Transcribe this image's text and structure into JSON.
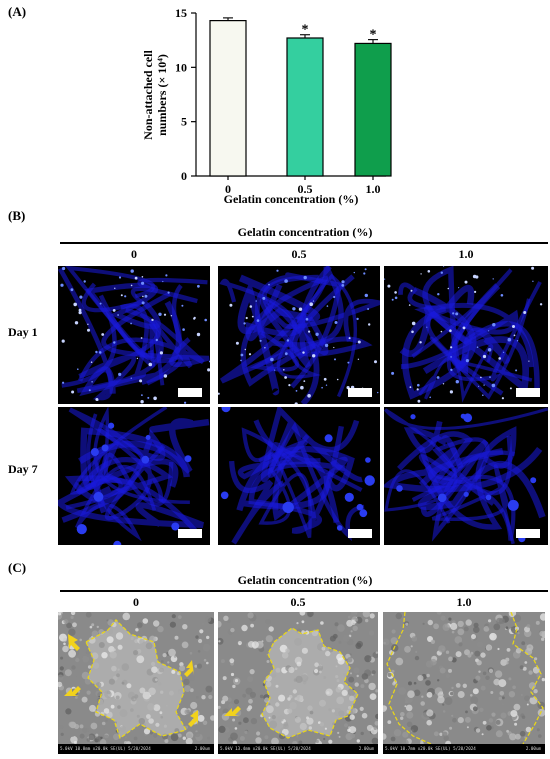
{
  "panel_a": {
    "label": "(A)",
    "chart_data": {
      "type": "bar",
      "categories": [
        "0",
        "0.5",
        "1.0"
      ],
      "values": [
        14.3,
        12.7,
        12.2
      ],
      "errors": [
        0.25,
        0.3,
        0.35
      ],
      "significance": [
        "",
        "*",
        "*"
      ],
      "bar_colors": [
        "#f7f8f0",
        "#34cf9f",
        "#0f9e4c"
      ],
      "xlabel": "Gelatin concentration (%)",
      "ylabel_line1": "Non-attached cell",
      "ylabel_line2": "numbers (× 10⁴)",
      "ylim": [
        0,
        15
      ],
      "yticks": [
        0,
        5,
        10,
        15
      ]
    }
  },
  "panel_b": {
    "label": "(B)",
    "header": "Gelatin concentration (%)",
    "columns": [
      "0",
      "0.5",
      "1.0"
    ],
    "rows": [
      "Day 1",
      "Day 7"
    ]
  },
  "panel_c": {
    "label": "(C)",
    "header": "Gelatin concentration (%)",
    "columns": [
      "0",
      "0.5",
      "1.0"
    ],
    "sem_footers": [
      {
        "left": "5.0kV 10.8mm x20.0k SE(UL) 5/20/2024",
        "right": "2.00um"
      },
      {
        "left": "5.0kV 13.4mm x20.0k SE(UL) 5/20/2024",
        "right": "2.00um"
      },
      {
        "left": "5.0kV 10.7mm x20.0k SE(UL) 5/20/2024",
        "right": "2.00um"
      }
    ]
  },
  "colors": {
    "confocal_bg": "#000000",
    "confocal_stain": "#1a1adc",
    "sem_outline": "#e8d51a",
    "arrow": "#f2d21c"
  }
}
